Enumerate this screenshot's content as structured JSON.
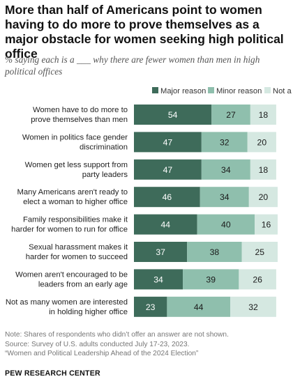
{
  "chart_data": {
    "type": "bar",
    "orientation": "horizontal",
    "stacked": true,
    "title": "More than half of Americans point to women having to do more to prove themselves as a major obstacle for women seeking high political office",
    "subtitle": "% saying each is a ___ why there are fewer women than men in high political offices",
    "xlim": [
      0,
      100
    ],
    "legend_position": "top-right",
    "grid": false,
    "categories": [
      [
        "Women have to do more to",
        "prove themselves than men"
      ],
      [
        "Women in politics face gender",
        "discrimination"
      ],
      [
        "Women get less support from",
        "party leaders"
      ],
      [
        "Many Americans aren't ready to",
        "elect a woman to higher office"
      ],
      [
        "Family responsibilities make it",
        "harder for women to run for office"
      ],
      [
        "Sexual harassment makes it",
        "harder for women to succeed"
      ],
      [
        "Women aren't encouraged to be",
        "leaders from an early age"
      ],
      [
        "Not as many women are interested",
        "in holding higher office"
      ]
    ],
    "series": [
      {
        "name": "Major reason",
        "color": "#3e6b5a",
        "values": [
          54,
          47,
          47,
          46,
          44,
          37,
          34,
          23
        ]
      },
      {
        "name": "Minor reason",
        "color": "#8fbfad",
        "values": [
          27,
          32,
          34,
          34,
          40,
          38,
          39,
          44
        ]
      },
      {
        "name": "Not a reason",
        "color": "#d5e8e1",
        "values": [
          18,
          20,
          18,
          20,
          16,
          25,
          26,
          32
        ]
      }
    ]
  },
  "notes": {
    "note": "Note: Shares of respondents who didn’t offer an answer are not shown.",
    "source": "Source: Survey of U.S. adults conducted July 17-23, 2023.",
    "report": "“Women and Political Leadership Ahead of the 2024 Election”"
  },
  "brand": "PEW RESEARCH CENTER"
}
